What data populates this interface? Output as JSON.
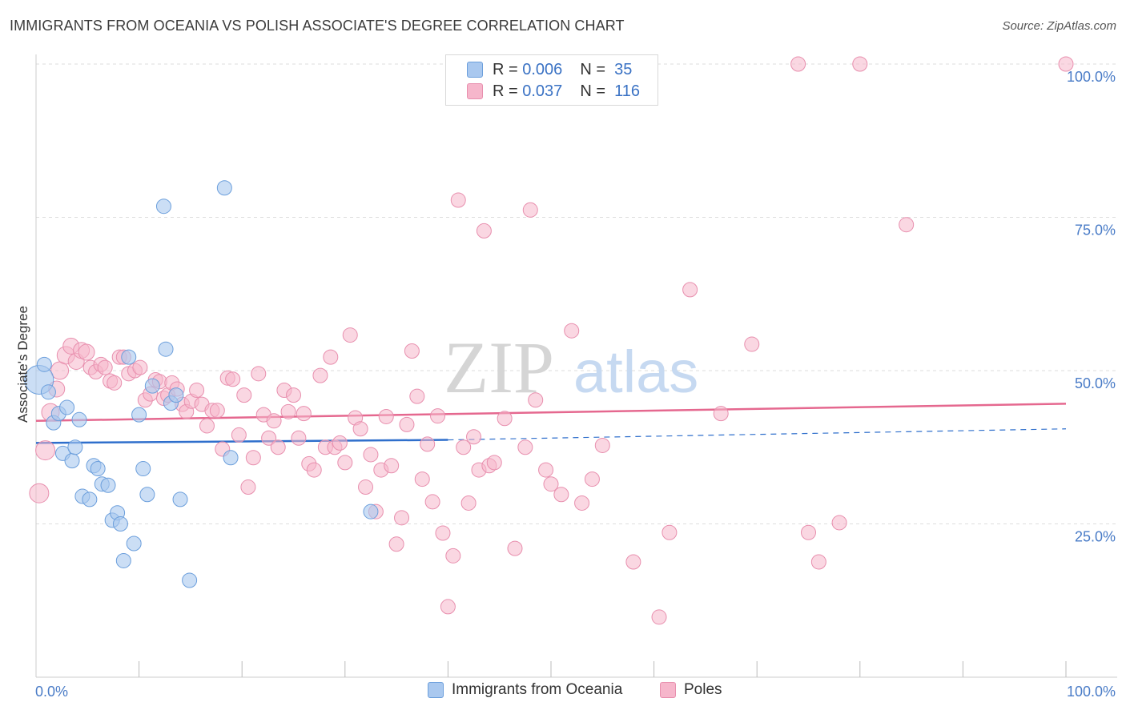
{
  "title": "IMMIGRANTS FROM OCEANIA VS POLISH ASSOCIATE'S DEGREE CORRELATION CHART",
  "source": "Source: ZipAtlas.com",
  "watermark": {
    "zip": "ZIP",
    "atlas": "atlas"
  },
  "legend": {
    "row1": {
      "r_label": "R =",
      "r_value": "0.006",
      "n_label": "N =",
      "n_value": "35"
    },
    "row2": {
      "r_label": "R =",
      "r_value": "0.037",
      "n_label": "N =",
      "n_value": "116"
    }
  },
  "bottom_legend": {
    "series1": "Immigrants from Oceania",
    "series2": "Poles"
  },
  "colors": {
    "blue_fill": "#a9c8ef",
    "blue_stroke": "#6c9fdc",
    "blue_line": "#2f6fcc",
    "pink_fill": "#f6b6cb",
    "pink_stroke": "#e88fae",
    "pink_line": "#e5688f",
    "tick_label": "#4a7cc7",
    "grid": "#dddddd"
  },
  "chart_data": {
    "type": "scatter",
    "title": "IMMIGRANTS FROM OCEANIA VS POLISH ASSOCIATE'S DEGREE CORRELATION CHART",
    "xlabel": "",
    "ylabel": "Associate's Degree",
    "xlim": [
      0,
      100
    ],
    "ylim": [
      0,
      100
    ],
    "x_tick_labels": [
      "0.0%",
      "100.0%"
    ],
    "y_ticks": [
      25,
      50,
      75,
      100
    ],
    "y_tick_labels": [
      "25.0%",
      "50.0%",
      "75.0%",
      "100.0%"
    ],
    "grid": true,
    "legend_position": "top-center",
    "series": [
      {
        "name": "Immigrants from Oceania",
        "color": "#a9c8ef",
        "trend": {
          "x": [
            0,
            40
          ],
          "y": [
            38.2,
            38.7
          ],
          "dashed_to": [
            100,
            40.5
          ]
        },
        "points": [
          [
            0.3,
            48.5,
            18
          ],
          [
            0.8,
            51,
            9
          ],
          [
            1.2,
            46.5,
            9
          ],
          [
            1.7,
            41.5,
            9
          ],
          [
            2.2,
            43,
            9
          ],
          [
            2.6,
            36.5,
            9
          ],
          [
            3.0,
            44,
            9
          ],
          [
            3.5,
            35.3,
            9
          ],
          [
            3.8,
            37.5,
            9
          ],
          [
            4.2,
            42,
            9
          ],
          [
            4.5,
            29.5,
            9
          ],
          [
            5.2,
            29,
            9
          ],
          [
            5.6,
            34.5,
            9
          ],
          [
            6.0,
            34,
            9
          ],
          [
            6.4,
            31.5,
            9
          ],
          [
            7.0,
            31.3,
            9
          ],
          [
            7.4,
            25.6,
            9
          ],
          [
            7.9,
            26.8,
            9
          ],
          [
            8.2,
            25,
            9
          ],
          [
            8.5,
            19,
            9
          ],
          [
            9.0,
            52.2,
            9
          ],
          [
            9.5,
            21.8,
            9
          ],
          [
            10.0,
            42.8,
            9
          ],
          [
            10.4,
            34,
            9
          ],
          [
            10.8,
            29.8,
            9
          ],
          [
            11.3,
            47.5,
            9
          ],
          [
            12.4,
            76.8,
            9
          ],
          [
            12.6,
            53.5,
            9
          ],
          [
            13.1,
            44.7,
            9
          ],
          [
            13.6,
            46,
            9
          ],
          [
            14.0,
            29,
            9
          ],
          [
            14.9,
            15.8,
            9
          ],
          [
            18.3,
            79.8,
            9
          ],
          [
            18.9,
            35.8,
            9
          ],
          [
            32.5,
            27,
            9
          ]
        ]
      },
      {
        "name": "Poles",
        "color": "#f6b6cb",
        "trend": {
          "x": [
            0,
            100
          ],
          "y": [
            41.8,
            44.6
          ]
        },
        "points": [
          [
            0.3,
            30,
            12
          ],
          [
            0.9,
            37,
            12
          ],
          [
            1.4,
            43.2,
            11
          ],
          [
            2.0,
            47,
            10
          ],
          [
            2.3,
            50,
            11
          ],
          [
            2.9,
            52.5,
            11
          ],
          [
            3.4,
            54,
            10
          ],
          [
            3.9,
            51.5,
            10
          ],
          [
            4.4,
            53.3,
            10
          ],
          [
            4.9,
            53,
            10
          ],
          [
            5.3,
            50.5,
            9
          ],
          [
            5.8,
            49.8,
            9
          ],
          [
            6.3,
            51,
            9
          ],
          [
            6.7,
            50.5,
            9
          ],
          [
            7.2,
            48.3,
            9
          ],
          [
            7.6,
            48,
            9
          ],
          [
            8.1,
            52.2,
            9
          ],
          [
            8.5,
            52.2,
            9
          ],
          [
            9.0,
            49.5,
            9
          ],
          [
            9.6,
            50,
            9
          ],
          [
            10.1,
            50.5,
            9
          ],
          [
            10.6,
            45.2,
            9
          ],
          [
            11.1,
            46.2,
            9
          ],
          [
            11.6,
            48.5,
            9
          ],
          [
            12.0,
            48.2,
            9
          ],
          [
            12.4,
            45.5,
            9
          ],
          [
            12.8,
            46,
            9
          ],
          [
            13.2,
            48,
            9
          ],
          [
            13.7,
            47,
            9
          ],
          [
            14.2,
            44.5,
            9
          ],
          [
            14.6,
            43.3,
            9
          ],
          [
            15.1,
            45,
            9
          ],
          [
            15.6,
            46.8,
            9
          ],
          [
            16.1,
            44.5,
            9
          ],
          [
            16.6,
            41,
            9
          ],
          [
            17.1,
            43.5,
            9
          ],
          [
            17.6,
            43.5,
            9
          ],
          [
            18.1,
            37.2,
            9
          ],
          [
            18.6,
            48.8,
            9
          ],
          [
            19.1,
            48.6,
            9
          ],
          [
            19.7,
            39.5,
            9
          ],
          [
            20.2,
            46,
            9
          ],
          [
            20.6,
            31,
            9
          ],
          [
            21.1,
            35.8,
            9
          ],
          [
            21.6,
            49.5,
            9
          ],
          [
            22.1,
            42.8,
            9
          ],
          [
            22.6,
            39,
            9
          ],
          [
            23.1,
            41.8,
            9
          ],
          [
            23.5,
            37.5,
            9
          ],
          [
            24.1,
            46.8,
            9
          ],
          [
            24.5,
            43.3,
            9
          ],
          [
            25.0,
            46,
            9
          ],
          [
            25.5,
            39,
            9
          ],
          [
            26.0,
            43,
            9
          ],
          [
            26.5,
            34.8,
            9
          ],
          [
            27.0,
            33.8,
            9
          ],
          [
            27.6,
            49.2,
            9
          ],
          [
            28.1,
            37.5,
            9
          ],
          [
            28.6,
            52.2,
            9
          ],
          [
            29.0,
            37.5,
            9
          ],
          [
            29.5,
            38.2,
            9
          ],
          [
            30.0,
            35,
            9
          ],
          [
            30.5,
            55.8,
            9
          ],
          [
            31.0,
            42.3,
            9
          ],
          [
            31.5,
            40.5,
            9
          ],
          [
            32.0,
            31,
            9
          ],
          [
            32.5,
            36.3,
            9
          ],
          [
            33.0,
            27,
            9
          ],
          [
            33.5,
            33.8,
            9
          ],
          [
            34.0,
            42.5,
            9
          ],
          [
            34.5,
            34.5,
            9
          ],
          [
            35.0,
            21.7,
            9
          ],
          [
            35.5,
            26,
            9
          ],
          [
            36.0,
            41.2,
            9
          ],
          [
            36.5,
            53.2,
            9
          ],
          [
            37.0,
            45.8,
            9
          ],
          [
            37.5,
            32.3,
            9
          ],
          [
            38.0,
            38,
            9
          ],
          [
            38.5,
            28.6,
            9
          ],
          [
            39.0,
            42.6,
            9
          ],
          [
            39.5,
            23.5,
            9
          ],
          [
            40.0,
            11.5,
            9
          ],
          [
            40.5,
            19.8,
            9
          ],
          [
            41.0,
            77.8,
            9
          ],
          [
            41.5,
            37.5,
            9
          ],
          [
            42.0,
            28.4,
            9
          ],
          [
            42.5,
            39.2,
            9
          ],
          [
            43.0,
            33.8,
            9
          ],
          [
            43.5,
            72.8,
            9
          ],
          [
            44.0,
            34.5,
            9
          ],
          [
            44.5,
            35,
            9
          ],
          [
            45.5,
            42.2,
            9
          ],
          [
            46.5,
            21,
            9
          ],
          [
            47.5,
            37.5,
            9
          ],
          [
            48.0,
            76.2,
            9
          ],
          [
            48.5,
            45.2,
            9
          ],
          [
            49.5,
            33.8,
            9
          ],
          [
            50.0,
            31.5,
            9
          ],
          [
            51.0,
            29.8,
            9
          ],
          [
            52.0,
            56.5,
            9
          ],
          [
            53.0,
            28.4,
            9
          ],
          [
            54.0,
            32.3,
            9
          ],
          [
            55.0,
            37.8,
            9
          ],
          [
            58.0,
            18.8,
            9
          ],
          [
            60.5,
            9.8,
            9
          ],
          [
            61.5,
            23.6,
            9
          ],
          [
            63.5,
            63.2,
            9
          ],
          [
            66.5,
            43,
            9
          ],
          [
            69.5,
            54.3,
            9
          ],
          [
            74.0,
            100,
            9
          ],
          [
            75.0,
            23.6,
            9
          ],
          [
            76.0,
            18.8,
            9
          ],
          [
            78.0,
            25.2,
            9
          ],
          [
            80.0,
            100,
            9
          ],
          [
            84.5,
            73.8,
            9
          ],
          [
            100.0,
            100,
            9
          ]
        ]
      }
    ]
  }
}
